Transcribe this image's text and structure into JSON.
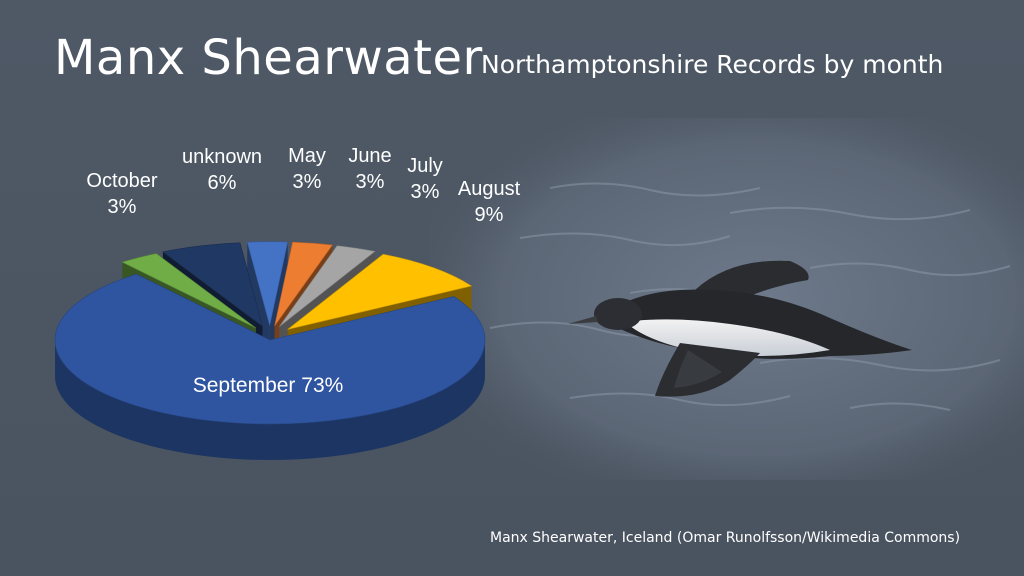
{
  "slide": {
    "title": "Manx Shearwater",
    "subtitle": "Northamptonshire Records by month",
    "caption": "Manx Shearwater, Iceland (Omar Runolfsson/Wikimedia Commons)"
  },
  "chart_data": {
    "type": "pie",
    "title": "",
    "style": "3d-exploded",
    "slices": [
      {
        "label": "May",
        "value": 3,
        "display": "3%",
        "color": "#4472c4"
      },
      {
        "label": "June",
        "value": 3,
        "display": "3%",
        "color": "#ed7d31"
      },
      {
        "label": "July",
        "value": 3,
        "display": "3%",
        "color": "#a5a5a5"
      },
      {
        "label": "August",
        "value": 9,
        "display": "9%",
        "color": "#ffc000"
      },
      {
        "label": "September",
        "value": 73,
        "display": "73%",
        "color": "#2f55a0"
      },
      {
        "label": "October",
        "value": 3,
        "display": "3%",
        "color": "#70ad47"
      },
      {
        "label": "unknown",
        "value": 6,
        "display": "6%",
        "color": "#203864"
      }
    ]
  },
  "colors": {
    "background": "#4c5663",
    "text": "#ffffff",
    "water": "#5f6a7a"
  },
  "icons": {
    "photo": "shearwater-photo"
  }
}
